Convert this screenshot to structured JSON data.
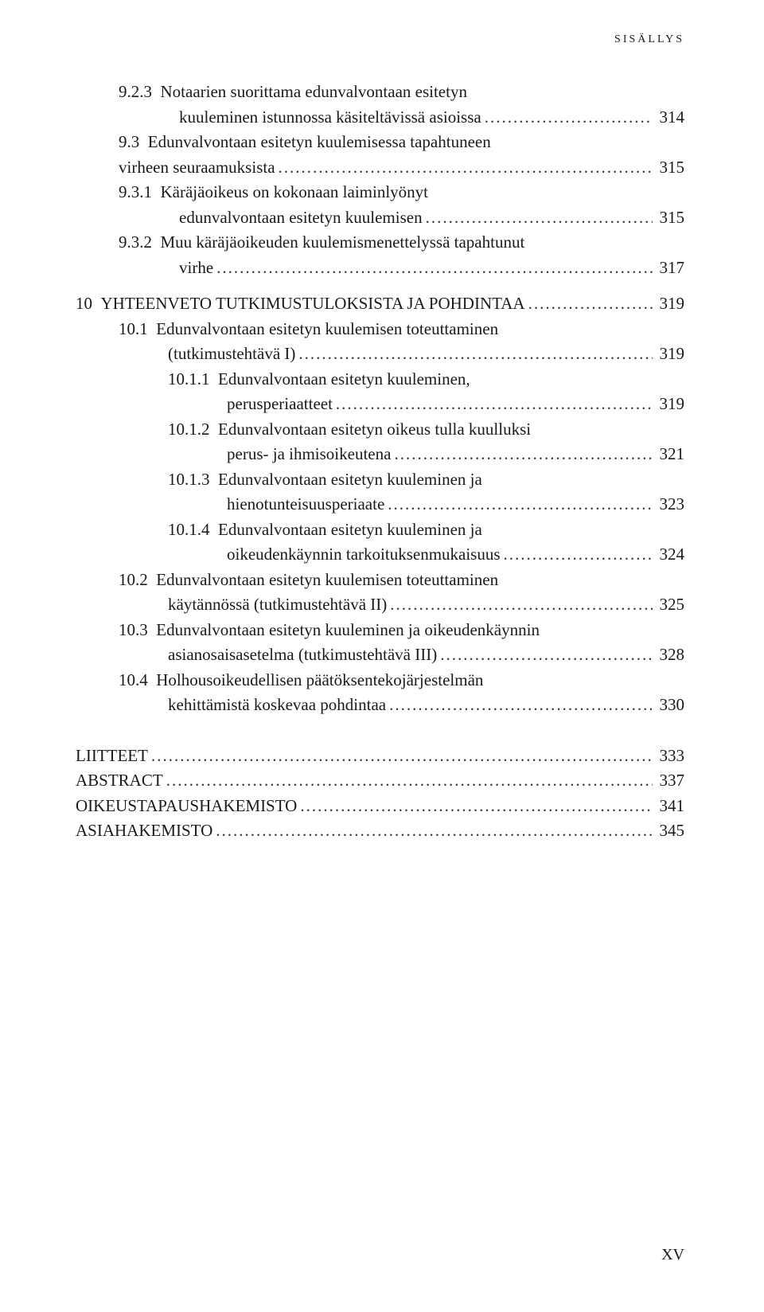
{
  "running_header": "SISÄLLYS",
  "page_number_roman": "XV",
  "entries": [
    {
      "indent": "level-2",
      "num": "9.2.3",
      "text": "Notaarien suorittama edunvalvontaan esitetyn",
      "cont": true
    },
    {
      "indent": "level-cont-2",
      "num": "",
      "text": "kuuleminen istunnossa käsiteltävissä asioissa",
      "page": "314"
    },
    {
      "indent": "level-2",
      "num": "9.3",
      "text": "Edunvalvontaan esitetyn kuulemisessa tapahtuneen",
      "cont": true
    },
    {
      "indent": "level-cont-1",
      "num": "",
      "text": "virheen seuraamuksista",
      "page": "315"
    },
    {
      "indent": "level-3",
      "num": "9.3.1",
      "text": "Käräjäoikeus on kokonaan laiminlyönyt",
      "cont": true
    },
    {
      "indent": "level-cont-2",
      "num": "",
      "text": "edunvalvontaan esitetyn kuulemisen",
      "page": "315"
    },
    {
      "indent": "level-3",
      "num": "9.3.2",
      "text": "Muu käräjäoikeuden kuulemismenettelyssä tapahtunut",
      "cont": true
    },
    {
      "indent": "level-cont-2",
      "num": "",
      "text": "virhe",
      "page": "317"
    }
  ],
  "chapter10": [
    {
      "indent": "level-10",
      "num": "10",
      "text": "YHTEENVETO TUTKIMUSTULOKSISTA JA POHDINTAA",
      "page": "319",
      "spacer": true
    },
    {
      "indent": "level-2",
      "num": "10.1",
      "text": "Edunvalvontaan esitetyn kuulemisen toteuttaminen",
      "cont": true
    },
    {
      "indent": "level-cont-3",
      "num": "",
      "text": "(tutkimustehtävä I)",
      "page": "319"
    },
    {
      "indent": "level-3b",
      "num": "10.1.1",
      "text": "Edunvalvontaan esitetyn kuuleminen,",
      "cont": true
    },
    {
      "indent": "level-cont-3b",
      "num": "",
      "text": "perusperiaatteet",
      "page": "319"
    },
    {
      "indent": "level-3b",
      "num": "10.1.2",
      "text": "Edunvalvontaan esitetyn oikeus tulla kuulluksi",
      "cont": true
    },
    {
      "indent": "level-cont-3b",
      "num": "",
      "text": "perus- ja ihmisoikeutena",
      "page": "321"
    },
    {
      "indent": "level-3b",
      "num": "10.1.3",
      "text": "Edunvalvontaan esitetyn kuuleminen ja",
      "cont": true
    },
    {
      "indent": "level-cont-3b",
      "num": "",
      "text": "hienotunteisuusperiaate",
      "page": "323"
    },
    {
      "indent": "level-3b",
      "num": "10.1.4",
      "text": "Edunvalvontaan esitetyn kuuleminen ja",
      "cont": true
    },
    {
      "indent": "level-cont-3b",
      "num": "",
      "text": "oikeudenkäynnin tarkoituksenmukaisuus",
      "page": "324"
    },
    {
      "indent": "level-2",
      "num": "10.2",
      "text": "Edunvalvontaan esitetyn kuulemisen toteuttaminen",
      "cont": true
    },
    {
      "indent": "level-cont-3",
      "num": "",
      "text": "käytännössä (tutkimustehtävä II)",
      "page": "325"
    },
    {
      "indent": "level-2",
      "num": "10.3",
      "text": "Edunvalvontaan esitetyn kuuleminen ja oikeudenkäynnin",
      "cont": true
    },
    {
      "indent": "level-cont-3",
      "num": "",
      "text": "asianosaisasetelma (tutkimustehtävä III)",
      "page": "328"
    },
    {
      "indent": "level-2",
      "num": "10.4",
      "text": "Holhousoikeudellisen päätöksentekojärjestelmän",
      "cont": true
    },
    {
      "indent": "level-cont-3",
      "num": "",
      "text": "kehittämistä koskevaa pohdintaa",
      "page": "330"
    }
  ],
  "end_entries": [
    {
      "indent": "level-0",
      "num": "",
      "text": "LIITTEET",
      "page": "333"
    },
    {
      "indent": "level-0",
      "num": "",
      "text": "ABSTRACT",
      "page": "337"
    },
    {
      "indent": "level-0",
      "num": "",
      "text": "OIKEUSTAPAUSHAKEMISTO",
      "page": "341"
    },
    {
      "indent": "level-0",
      "num": "",
      "text": "ASIAHAKEMISTO",
      "page": "345"
    }
  ]
}
